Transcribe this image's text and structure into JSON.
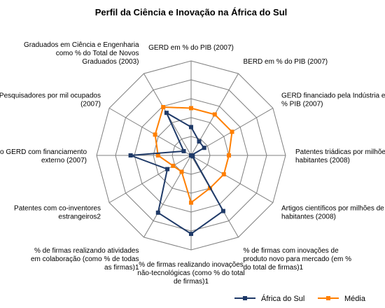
{
  "colors": {
    "sa": "#1f3a68",
    "avg": "#ff7f00",
    "grid": "#7f7f7f",
    "axis": "#000000"
  },
  "chart_data": {
    "type": "radar",
    "title": "Perfil da Ciência e Inovação na África do Sul",
    "grid": true,
    "legend_position": "bottom-right",
    "range": [
      0,
      1
    ],
    "axes": [
      [
        "GERD em % do PIB (2007)"
      ],
      [
        "BERD em % do PIB (2007)"
      ],
      [
        "GERD financiado pela Indústria em",
        "% PIB (2007)"
      ],
      [
        "Patentes triádicas por milhões de",
        "habitantes (2008)"
      ],
      [
        "Artigos científicos por milhões de",
        "habitantes (2008)"
      ],
      [
        "% de firmas com inovações de",
        "produto novo para mercado (em %",
        "do total de firmas)1"
      ],
      [
        "% de firmas realizando inovações",
        "não-tecnológicas (como  % do total",
        "de firmas)1"
      ],
      [
        "% de firmas realizando atividades",
        "em colaboração (como % de todas",
        "as firmas)1"
      ],
      [
        "Patentes com co-inventores",
        "estrangeiros2"
      ],
      [
        "% do GERD com financiamento",
        "externo (2007)"
      ],
      [
        "Pesquisadores por mil ocupados",
        "(2007)"
      ],
      [
        "Graduados em Ciência e Engenharia",
        "como % do Total de Novos",
        "Graduados (2003)"
      ]
    ],
    "series": [
      {
        "name": "África do Sul",
        "values": [
          0.3,
          0.17,
          0.16,
          0.0,
          0.02,
          0.68,
          0.83,
          0.7,
          0.29,
          0.64,
          0.09,
          0.52
        ]
      },
      {
        "name": "Média",
        "values": [
          0.5,
          0.5,
          0.5,
          0.4,
          0.4,
          0.4,
          0.5,
          0.2,
          0.22,
          0.35,
          0.44,
          0.59
        ]
      }
    ]
  }
}
